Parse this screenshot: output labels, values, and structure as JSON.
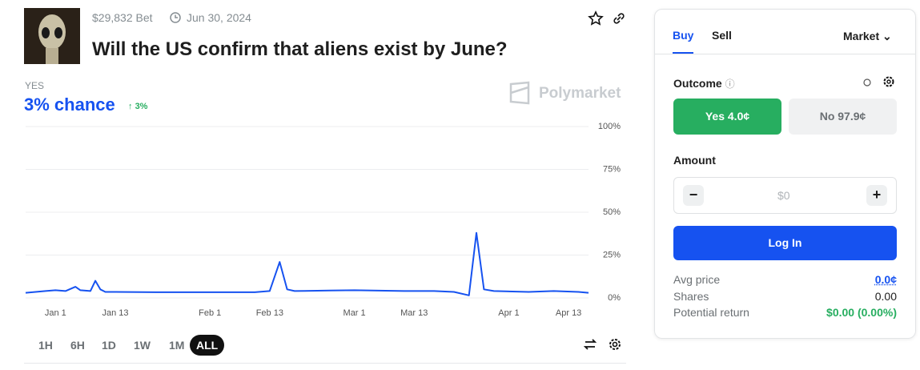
{
  "header": {
    "volume": "$29,832 Bet",
    "end_date": "Jun 30, 2024",
    "title": "Will the US confirm that aliens exist by June?"
  },
  "outcome": {
    "label": "YES",
    "chance": "3% chance",
    "change": "3%"
  },
  "watermark": "Polymarket",
  "chart_data": {
    "type": "line",
    "color": "#1652f0",
    "x": [
      -6,
      -2,
      0,
      2,
      4,
      5,
      7,
      8,
      9,
      10,
      12,
      20,
      30,
      40,
      43,
      45,
      46.5,
      48,
      55,
      60,
      70,
      76,
      80,
      83,
      84.5,
      86,
      88,
      95,
      100,
      105,
      107
    ],
    "values": [
      3,
      4,
      4.5,
      4,
      6.5,
      4.5,
      4,
      10,
      5,
      3.5,
      3.5,
      3.3,
      3.3,
      3.3,
      4,
      21,
      5,
      4,
      4.3,
      4.5,
      4,
      4,
      3.5,
      1.5,
      38,
      5,
      4,
      3.5,
      4,
      3.5,
      3
    ],
    "xlim": [
      -6,
      107
    ],
    "xticks": [
      {
        "value": 0,
        "label": "Jan 1"
      },
      {
        "value": 12,
        "label": "Jan 13"
      },
      {
        "value": 31,
        "label": "Feb 1"
      },
      {
        "value": 43,
        "label": "Feb 13"
      },
      {
        "value": 60,
        "label": "Mar 1"
      },
      {
        "value": 72,
        "label": "Mar 13"
      },
      {
        "value": 91,
        "label": "Apr 1"
      },
      {
        "value": 103,
        "label": "Apr 13"
      }
    ],
    "ylim": [
      0,
      100
    ],
    "yticks": [
      {
        "value": 0,
        "label": "0%"
      },
      {
        "value": 25,
        "label": "25%"
      },
      {
        "value": 50,
        "label": "50%"
      },
      {
        "value": 75,
        "label": "75%"
      },
      {
        "value": 100,
        "label": "100%"
      }
    ],
    "grid": true
  },
  "ranges": [
    "1H",
    "6H",
    "1D",
    "1W",
    "1M",
    "ALL"
  ],
  "panel": {
    "tabs": [
      "Buy",
      "Sell"
    ],
    "order_type": "Market",
    "outcome_label": "Outcome",
    "yes_button": "Yes 4.0¢",
    "no_button": "No 97.9¢",
    "amount_label": "Amount",
    "amount_placeholder": "$0",
    "login": "Log In",
    "rows": [
      [
        "Avg price",
        "0.0¢"
      ],
      [
        "Shares",
        "0.00"
      ],
      [
        "Potential return",
        "$0.00 (0.00%)"
      ]
    ]
  }
}
